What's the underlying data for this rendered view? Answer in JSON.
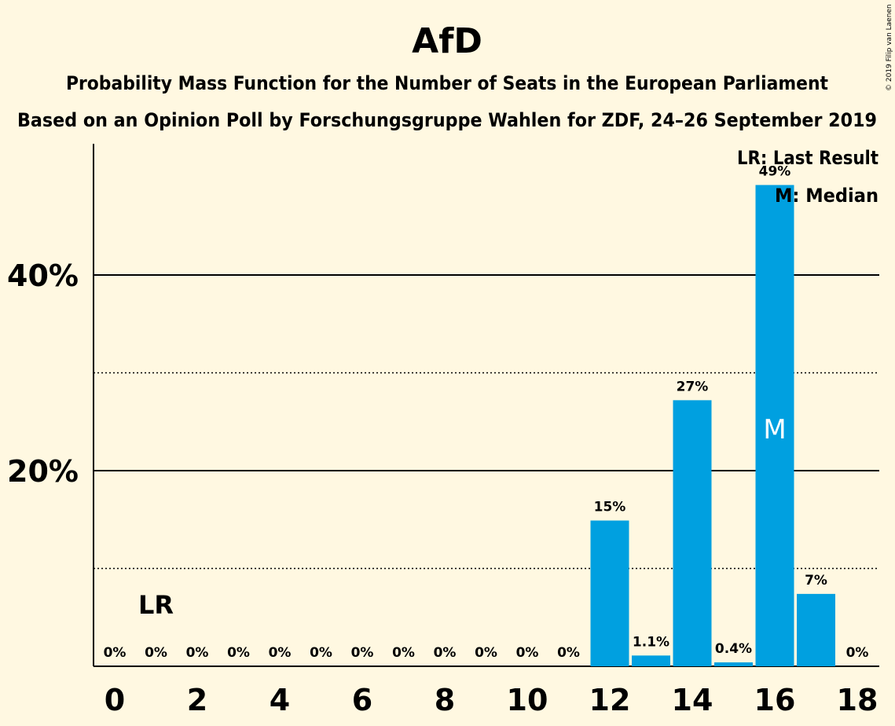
{
  "title": "AfD",
  "subtitle1": "Probability Mass Function for the Number of Seats in the European Parliament",
  "subtitle2": "Based on an Opinion Poll by Forschungsgruppe Wahlen for ZDF, 24–26 September 2019",
  "copyright": "© 2019 Filip van Laenen",
  "legend": {
    "last_result": "LR: Last Result",
    "median": "M: Median"
  },
  "colors": {
    "background": "#FFF8E1",
    "bar": "#00A0E0",
    "text": "#000000"
  },
  "chart_data": {
    "type": "bar",
    "x": [
      0,
      1,
      2,
      3,
      4,
      5,
      6,
      7,
      8,
      9,
      10,
      11,
      12,
      13,
      14,
      15,
      16,
      17,
      18
    ],
    "values": [
      0,
      0,
      0,
      0,
      0,
      0,
      0,
      0,
      0,
      0,
      0,
      0,
      14.9,
      1.1,
      27.2,
      0.4,
      49.2,
      7.4,
      0
    ],
    "value_labels": [
      "0%",
      "0%",
      "0%",
      "0%",
      "0%",
      "0%",
      "0%",
      "0%",
      "0%",
      "0%",
      "0%",
      "0%",
      "15%",
      "1.1%",
      "27%",
      "0.4%",
      "49%",
      "7%",
      "0%"
    ],
    "x_ticks": [
      0,
      2,
      4,
      6,
      8,
      10,
      12,
      14,
      16,
      18
    ],
    "y_ticks_major": [
      20,
      40
    ],
    "y_tick_labels": [
      "20%",
      "40%"
    ],
    "y_ticks_minor": [
      10,
      30
    ],
    "ylim": [
      0,
      53.5
    ],
    "last_result": {
      "x": 1,
      "label": "LR"
    },
    "median": {
      "x": 16,
      "label": "M"
    },
    "legend_position": "top-right"
  }
}
